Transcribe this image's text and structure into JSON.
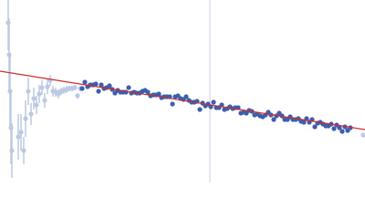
{
  "chart_data": {
    "type": "scatter",
    "xlim": [
      0,
      400
    ],
    "ylim": [
      200,
      0
    ],
    "series": [
      {
        "color": "#bcc9e2",
        "x": [
          9,
          10,
          11,
          12,
          13,
          20,
          23,
          26,
          28,
          31,
          34,
          37,
          40,
          43,
          46,
          49,
          52,
          55,
          58,
          61,
          64,
          67,
          70,
          73,
          76,
          79,
          82,
          85,
          88,
          398
        ],
        "values": [
          25,
          60,
          100,
          140,
          165,
          150,
          145,
          165,
          130,
          100,
          125,
          108,
          115,
          103,
          96,
          110,
          95,
          88,
          100,
          101,
          103,
          100,
          99,
          98,
          97,
          97,
          96,
          105,
          97,
          148
        ],
        "errors": [
          30,
          40,
          40,
          40,
          30,
          25,
          20,
          15,
          20,
          15,
          12,
          12,
          10,
          10,
          8,
          8,
          8,
          6,
          6,
          5,
          5,
          4,
          4,
          4,
          3,
          3,
          3,
          3,
          3,
          2
        ]
      },
      {
        "color": "#3a5fae",
        "x": [
          90,
          93,
          96,
          99,
          102,
          105,
          108,
          111,
          114,
          117,
          120,
          123,
          126,
          129,
          132,
          135,
          138,
          141,
          144,
          147,
          150,
          153,
          156,
          159,
          162,
          165,
          168,
          171,
          174,
          177,
          180,
          183,
          186,
          189,
          192,
          195,
          198,
          201,
          204,
          207,
          210,
          213,
          216,
          219,
          222,
          225,
          228,
          231,
          234,
          237,
          240,
          243,
          246,
          249,
          252,
          255,
          258,
          261,
          264,
          267,
          270,
          273,
          276,
          279,
          282,
          285,
          288,
          291,
          294,
          297,
          300,
          303,
          306,
          309,
          312,
          315,
          318,
          321,
          324,
          327,
          330,
          333,
          336,
          339,
          342,
          345,
          348,
          351,
          354,
          357,
          360,
          363,
          366,
          369,
          372,
          375,
          378,
          381,
          384
        ],
        "values": [
          97,
          90,
          95,
          93,
          93,
          92,
          100,
          93,
          97,
          96,
          94,
          98,
          102,
          99,
          101,
          101,
          101,
          96,
          102,
          101,
          102,
          102,
          100,
          99,
          101,
          105,
          104,
          104,
          103,
          107,
          106,
          106,
          106,
          114,
          106,
          105,
          108,
          109,
          106,
          110,
          112,
          112,
          111,
          120,
          113,
          116,
          114,
          117,
          112,
          118,
          118,
          115,
          120,
          119,
          117,
          119,
          118,
          118,
          124,
          123,
          124,
          121,
          122,
          126,
          125,
          127,
          128,
          126,
          123,
          126,
          131,
          127,
          124,
          127,
          131,
          131,
          128,
          131,
          131,
          130,
          133,
          134,
          130,
          134,
          131,
          139,
          135,
          134,
          136,
          138,
          138,
          136,
          141,
          137,
          140,
          144,
          139,
          143,
          140
        ]
      }
    ],
    "fit": {
      "color": "#d42a2a",
      "x": [
        0,
        400
      ],
      "values": [
        78,
        142
      ]
    },
    "vline": {
      "color": "#c9d3e6",
      "x": 230
    }
  }
}
